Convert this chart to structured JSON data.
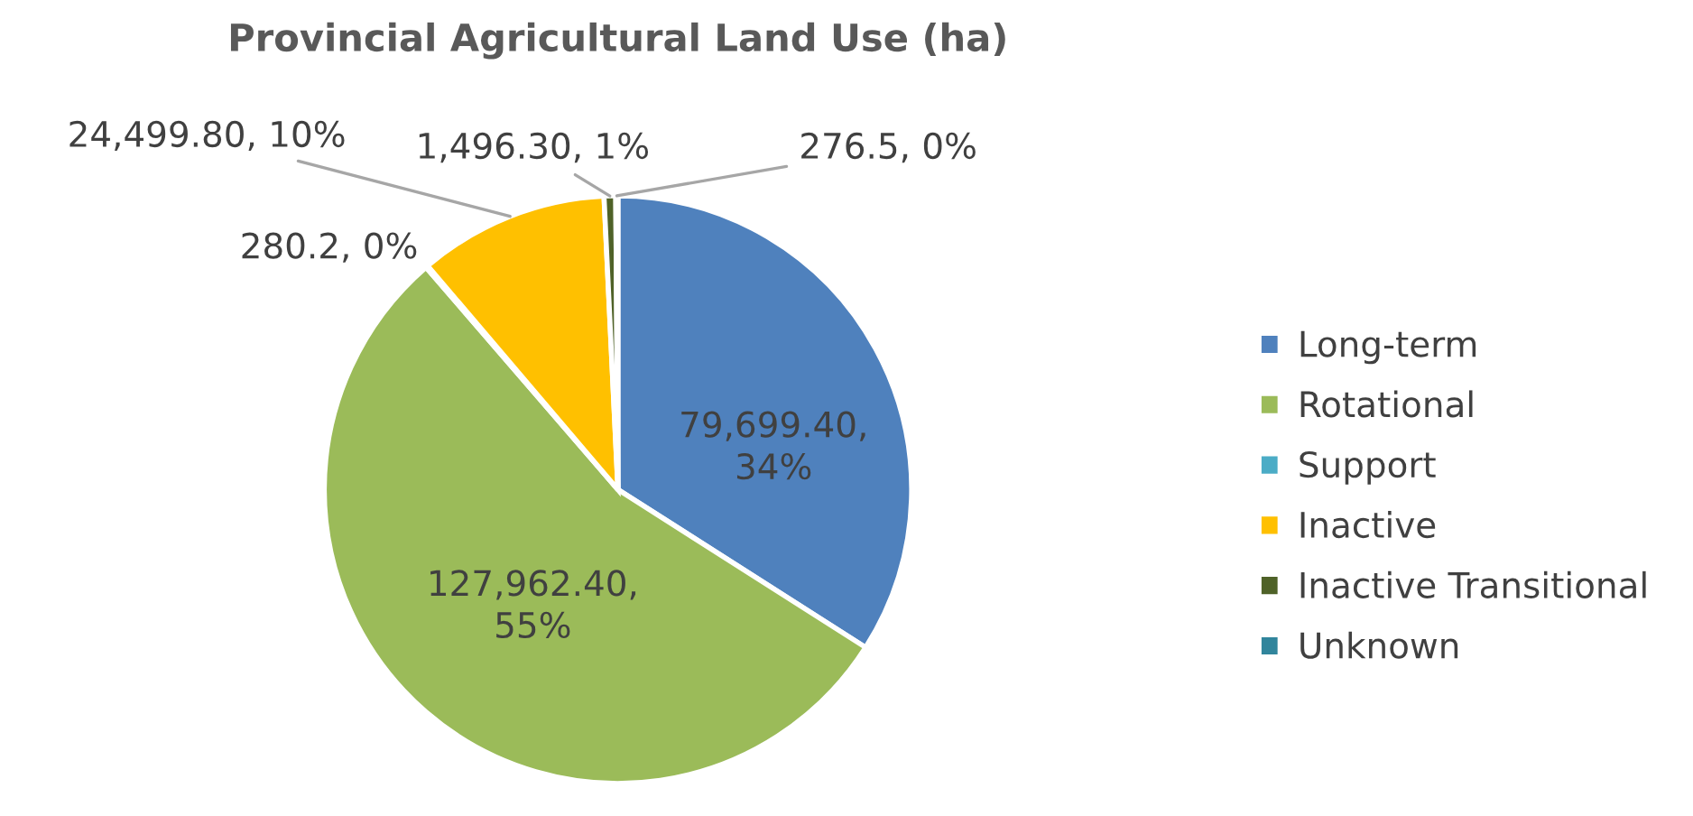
{
  "chart_data": {
    "type": "pie",
    "title": "Provincial Agricultural Land Use (ha)",
    "categories": [
      "Long-term",
      "Rotational",
      "Support",
      "Inactive",
      "Inactive Transitional",
      "Unknown"
    ],
    "values": [
      79699.4,
      127962.4,
      280.2,
      24499.8,
      1496.3,
      276.5
    ],
    "colors": [
      "#4f81bd",
      "#9bbb59",
      "#4bacc6",
      "#ffc000",
      "#4f6228",
      "#31859c"
    ],
    "value_labels": [
      "79,699.40, 34%",
      "127,962.40, 55%",
      "280.2, 0%",
      "24,499.80, 10%",
      "1,496.30, 1%",
      "276.5, 0%"
    ],
    "legend": "right"
  }
}
